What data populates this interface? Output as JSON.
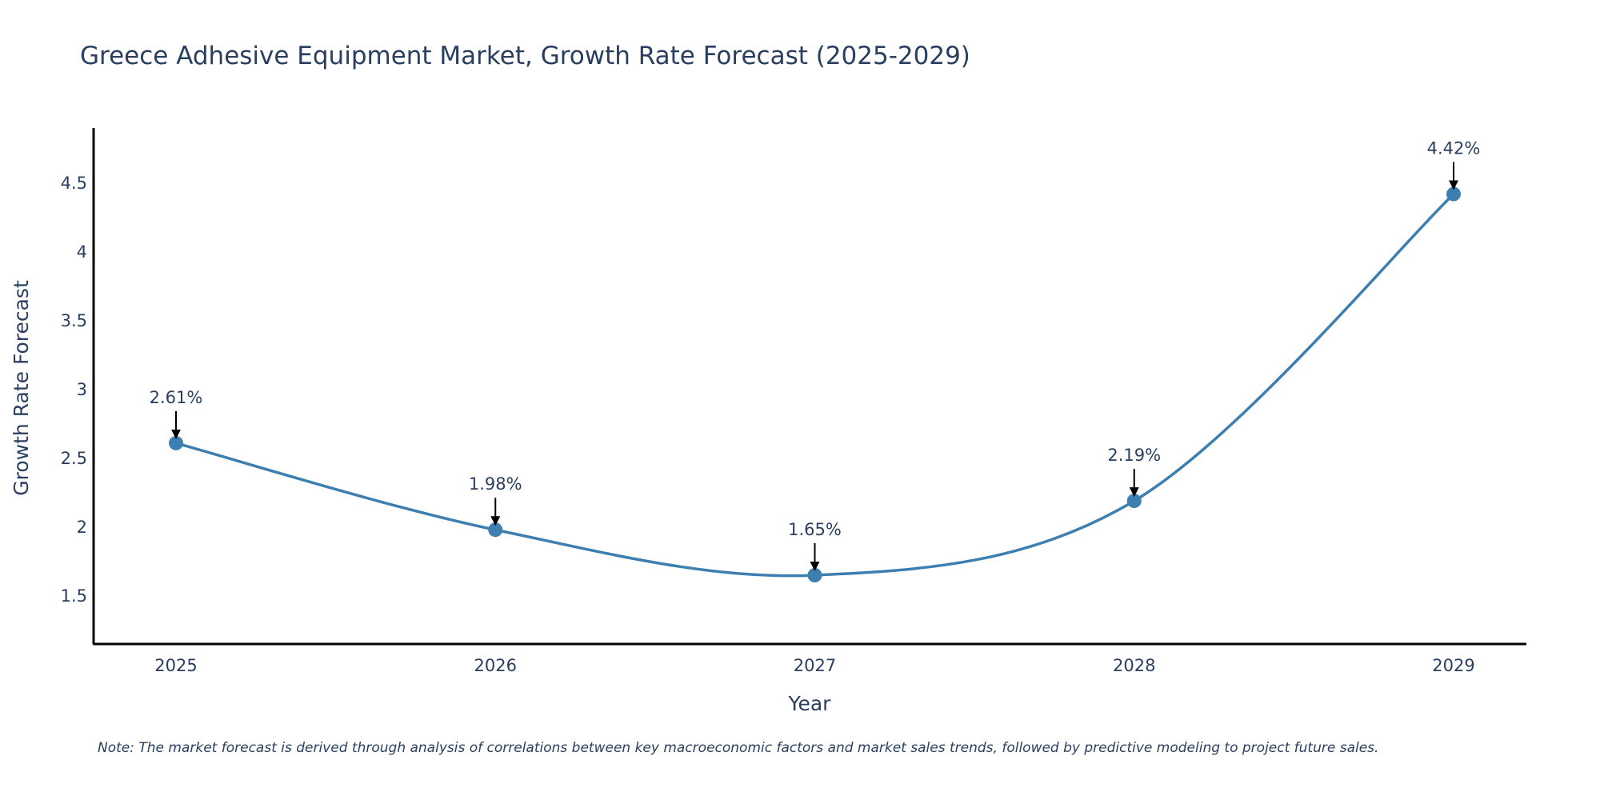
{
  "chart_data": {
    "type": "line",
    "title": "Greece Adhesive Equipment Market, Growth Rate Forecast (2025-2029)",
    "xlabel": "Year",
    "ylabel": "Growth Rate Forecast",
    "categories": [
      "2025",
      "2026",
      "2027",
      "2028",
      "2029"
    ],
    "series": [
      {
        "name": "Growth Rate Forecast",
        "values": [
          2.61,
          1.98,
          1.65,
          2.19,
          4.42
        ],
        "labels": [
          "2.61%",
          "1.98%",
          "1.65%",
          "2.19%",
          "4.42%"
        ]
      }
    ],
    "y_ticks": [
      1.5,
      2,
      2.5,
      3,
      3.5,
      4,
      4.5
    ],
    "y_tick_labels": [
      "1.5",
      "2",
      "2.5",
      "3",
      "3.5",
      "4",
      "4.5"
    ],
    "ylim": [
      1.15,
      4.9
    ],
    "grid": false,
    "legend": "none",
    "line_color": "#3d7fb0",
    "marker_color": "#3d7fb0",
    "arrow_color": "#000000",
    "text_color": "#2a3f5f",
    "axis_color": "#000000"
  },
  "note": "Note: The market forecast is derived through analysis of correlations between key macroeconomic factors and market sales trends, followed by predictive modeling to project future sales."
}
